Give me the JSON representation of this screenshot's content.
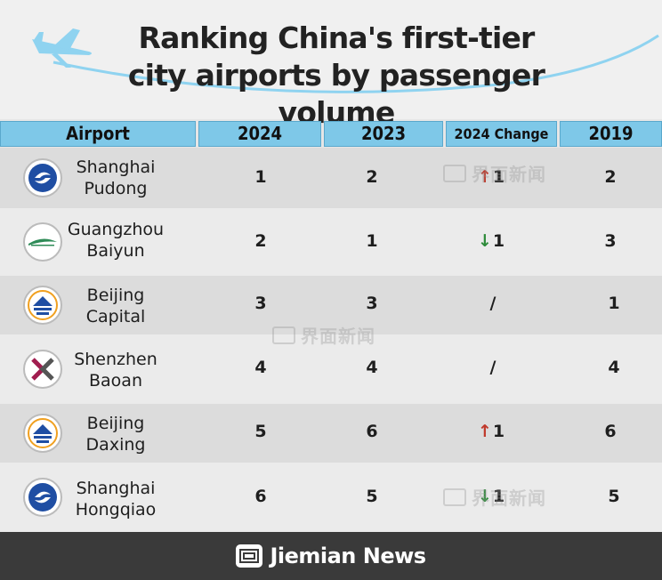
{
  "title": "Ranking China's first-tier city airports by passenger volume",
  "columns": [
    "Airport",
    "2024",
    "2023",
    "2024 Change",
    "2019"
  ],
  "rows": [
    {
      "name_line1": "Shanghai",
      "name_line2": "Pudong",
      "y2024": "1",
      "y2023": "2",
      "change_dir": "up",
      "change_symbol": "↑",
      "change_value": "1",
      "y2019": "2",
      "logo": "shanghai-airport-logo-icon"
    },
    {
      "name_line1": "Guangzhou",
      "name_line2": "Baiyun",
      "y2024": "2",
      "y2023": "1",
      "change_dir": "down",
      "change_symbol": "↓",
      "change_value": "1",
      "y2019": "3",
      "logo": "guangzhou-airport-logo-icon"
    },
    {
      "name_line1": "Beijing",
      "name_line2": "Capital",
      "y2024": "3",
      "y2023": "3",
      "change_dir": "none",
      "change_symbol": "",
      "change_value": "/",
      "y2019": "1",
      "logo": "beijing-airport-logo-icon"
    },
    {
      "name_line1": "Shenzhen",
      "name_line2": "Baoan",
      "y2024": "4",
      "y2023": "4",
      "change_dir": "none",
      "change_symbol": "",
      "change_value": "/",
      "y2019": "4",
      "logo": "shenzhen-airport-logo-icon"
    },
    {
      "name_line1": "Beijing",
      "name_line2": "Daxing",
      "y2024": "5",
      "y2023": "6",
      "change_dir": "up",
      "change_symbol": "↑",
      "change_value": "1",
      "y2019": "6",
      "logo": "beijing-airport-logo-icon"
    },
    {
      "name_line1": "Shanghai",
      "name_line2": "Hongqiao",
      "y2024": "6",
      "y2023": "5",
      "change_dir": "down",
      "change_symbol": "↓",
      "change_value": "1",
      "y2019": "5",
      "logo": "shanghai-airport-logo-icon"
    }
  ],
  "watermark_text": "界面新闻",
  "footer_brand": "Jiemian News",
  "colors": {
    "header_bg": "#7ec8e8",
    "up": "#c0392b",
    "down": "#2e8b3a",
    "footer_bg": "#3a3a3a",
    "accent_blue": "#8fd3f0"
  }
}
